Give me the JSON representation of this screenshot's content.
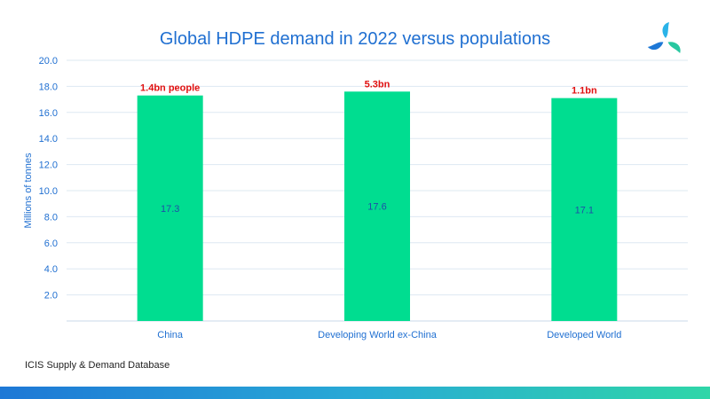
{
  "chart_data": {
    "type": "bar",
    "title": "Global HDPE demand in 2022 versus populations",
    "xlabel": "",
    "ylabel": "Millions of tonnes",
    "categories": [
      "China",
      "Developing World ex-China",
      "Developed World"
    ],
    "values": [
      17.3,
      17.6,
      17.1
    ],
    "value_labels": [
      "17.3",
      "17.6",
      "17.1"
    ],
    "annotations": [
      "1.4bn people",
      "5.3bn",
      "1.1bn"
    ],
    "ylim": [
      0,
      20
    ],
    "yticks": [
      "2.0",
      "4.0",
      "6.0",
      "8.0",
      "10.0",
      "12.0",
      "14.0",
      "16.0",
      "18.0",
      "20.0"
    ],
    "ytick_values": [
      2,
      4,
      6,
      8,
      10,
      12,
      14,
      16,
      18,
      20
    ],
    "grid": true,
    "colors": {
      "bar": "#00dd90",
      "grid": "#dde8f2",
      "axis_text": "#1f6fd1",
      "value_label": "#1f4fa8",
      "annotation": "#e01010"
    }
  },
  "source": "ICIS Supply & Demand Database",
  "logo": {
    "icon": "icis-logo-icon"
  }
}
